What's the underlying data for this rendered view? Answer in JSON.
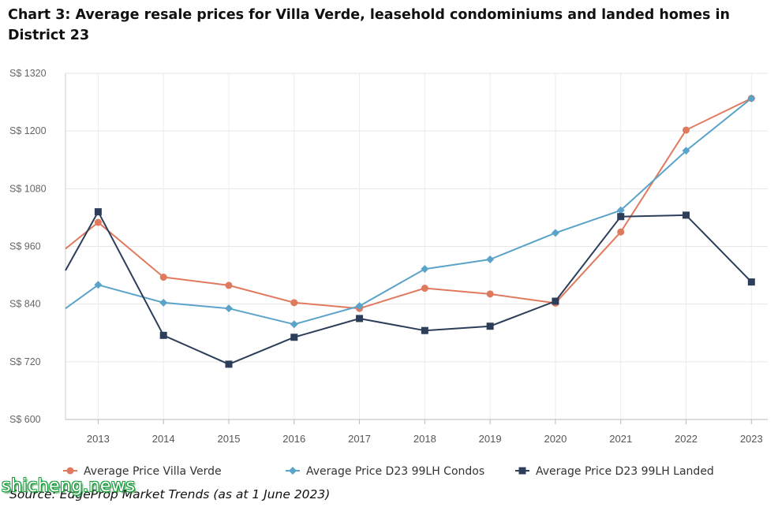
{
  "chart_data": {
    "type": "line",
    "title": "Chart 3: Average resale prices for Villa Verde, leasehold condominiums and landed homes in District 23",
    "y_tick_labels": [
      "S$ 600",
      "S$ 720",
      "S$ 840",
      "S$ 960",
      "S$ 1080",
      "S$ 1200",
      "S$ 1320"
    ],
    "y_ticks": [
      600,
      720,
      840,
      960,
      1080,
      1200,
      1320
    ],
    "ylim": [
      600,
      1320
    ],
    "x_range": [
      2012.5,
      2023.25
    ],
    "categories": [
      "2013",
      "2014",
      "2015",
      "2016",
      "2017",
      "2018",
      "2019",
      "2020",
      "2021",
      "2022",
      "2023"
    ],
    "grid": true,
    "legend_position": "bottom",
    "series": [
      {
        "name": "Average Price Villa Verde",
        "color": "#e07a5f",
        "marker": "circle",
        "points": [
          [
            2012.5,
            955
          ],
          [
            2013,
            1010
          ],
          [
            2014,
            896
          ],
          [
            2015,
            879
          ],
          [
            2016,
            843
          ],
          [
            2017,
            831
          ],
          [
            2018,
            873
          ],
          [
            2019,
            861
          ],
          [
            2020,
            842
          ],
          [
            2021,
            990
          ],
          [
            2022,
            1202
          ],
          [
            2023,
            1268
          ]
        ]
      },
      {
        "name": "Average Price D23 99LH Condos",
        "color": "#5ba3c9",
        "marker": "diamond",
        "points": [
          [
            2012.5,
            831
          ],
          [
            2013,
            880
          ],
          [
            2014,
            843
          ],
          [
            2015,
            831
          ],
          [
            2016,
            798
          ],
          [
            2017,
            836
          ],
          [
            2018,
            913
          ],
          [
            2019,
            933
          ],
          [
            2020,
            988
          ],
          [
            2021,
            1035
          ],
          [
            2022,
            1159
          ],
          [
            2023,
            1268
          ]
        ]
      },
      {
        "name": "Average Price D23 99LH Landed",
        "color": "#2c3e5a",
        "marker": "square",
        "points": [
          [
            2012.5,
            910
          ],
          [
            2013,
            1032
          ],
          [
            2014,
            775
          ],
          [
            2015,
            715
          ],
          [
            2016,
            771
          ],
          [
            2017,
            810
          ],
          [
            2018,
            785
          ],
          [
            2019,
            794
          ],
          [
            2020,
            846
          ],
          [
            2021,
            1022
          ],
          [
            2022,
            1025
          ],
          [
            2023,
            886
          ]
        ]
      }
    ]
  },
  "source": "Source: EdgeProp Market Trends (as at 1 June 2023)",
  "watermark": "shicheng.news"
}
